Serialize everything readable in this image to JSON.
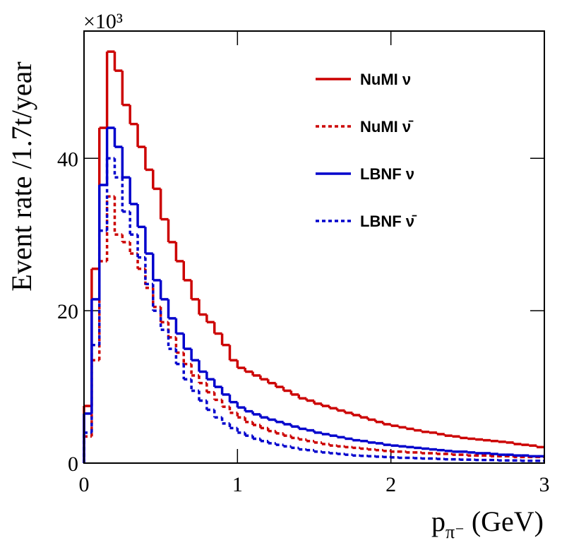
{
  "chart_data": {
    "type": "histogram",
    "ylabel": "Event rate /1.7t/year",
    "y_multiplier": "×10³",
    "xlabel": "p",
    "xlabel_subscript": "π⁻",
    "xlabel_unit": "(GeV)",
    "xlim": [
      0,
      3
    ],
    "ylim": [
      0,
      56.7
    ],
    "xticks": [
      0,
      1,
      2,
      3
    ],
    "yticks": [
      0,
      20,
      40
    ],
    "legend": "upper right",
    "bins": [
      0,
      0.05,
      0.1,
      0.15,
      0.2,
      0.25,
      0.3,
      0.35,
      0.4,
      0.45,
      0.5,
      0.55,
      0.6,
      0.65,
      0.7,
      0.75,
      0.8,
      0.85,
      0.9,
      0.95,
      1.0,
      1.05,
      1.1,
      1.15,
      1.2,
      1.25,
      1.3,
      1.35,
      1.4,
      1.45,
      1.5,
      1.55,
      1.6,
      1.65,
      1.7,
      1.75,
      1.8,
      1.85,
      1.9,
      1.95,
      2.0,
      2.05,
      2.1,
      2.15,
      2.2,
      2.25,
      2.3,
      2.35,
      2.4,
      2.45,
      2.5,
      2.55,
      2.6,
      2.65,
      2.7,
      2.75,
      2.8,
      2.85,
      2.9,
      2.95,
      3.0
    ],
    "series": [
      {
        "name": "NuMI ν",
        "color": "#cc0000",
        "dashed": false,
        "values": [
          7.5,
          25.5,
          44,
          54,
          51.5,
          47,
          44.5,
          41.5,
          38.5,
          36,
          32,
          29,
          26.5,
          24,
          21.5,
          19.5,
          18.5,
          17,
          15.5,
          13.5,
          12.5,
          12,
          11.5,
          11,
          10.5,
          10,
          9.5,
          9,
          8.5,
          8.2,
          7.8,
          7.5,
          7.2,
          6.9,
          6.6,
          6.3,
          6.0,
          5.7,
          5.4,
          5.1,
          4.9,
          4.7,
          4.5,
          4.3,
          4.1,
          4.0,
          3.8,
          3.6,
          3.5,
          3.3,
          3.2,
          3.1,
          3.0,
          2.9,
          2.8,
          2.7,
          2.5,
          2.4,
          2.3,
          2.1
        ]
      },
      {
        "name": "NuMI ν̄",
        "color": "#cc0000",
        "dashed": true,
        "values": [
          3.5,
          13.5,
          26.5,
          35,
          30,
          29,
          27.5,
          25.5,
          23,
          20.5,
          18.5,
          16.5,
          14.5,
          13,
          11.5,
          10.5,
          9.3,
          8.3,
          7.4,
          6.6,
          6.0,
          5.4,
          5.0,
          4.6,
          4.2,
          3.9,
          3.6,
          3.3,
          3.1,
          2.9,
          2.7,
          2.5,
          2.3,
          2.2,
          2.1,
          2.0,
          1.9,
          1.8,
          1.7,
          1.6,
          1.5,
          1.5,
          1.4,
          1.4,
          1.3,
          1.3,
          1.2,
          1.2,
          1.1,
          1.1,
          1.0,
          1.0,
          1.0,
          0.9,
          0.9,
          0.9,
          0.8,
          0.8,
          0.8,
          0.8
        ]
      },
      {
        "name": "LBNF ν",
        "color": "#0000cc",
        "dashed": false,
        "values": [
          6.5,
          21.5,
          36.5,
          44,
          41.5,
          37.5,
          34,
          31,
          27.5,
          24,
          21.5,
          19,
          17,
          15,
          13.5,
          12,
          11,
          10,
          9,
          8,
          7.3,
          6.8,
          6.4,
          6.0,
          5.7,
          5.4,
          5.1,
          4.8,
          4.5,
          4.3,
          4.0,
          3.8,
          3.6,
          3.4,
          3.2,
          3.0,
          2.9,
          2.7,
          2.6,
          2.4,
          2.3,
          2.2,
          2.1,
          2.0,
          1.9,
          1.8,
          1.7,
          1.6,
          1.5,
          1.5,
          1.4,
          1.3,
          1.3,
          1.2,
          1.1,
          1.1,
          1.0,
          1.0,
          0.9,
          0.9
        ]
      },
      {
        "name": "LBNF ν̄",
        "color": "#0000cc",
        "dashed": true,
        "values": [
          4,
          15.5,
          30.5,
          40,
          37.5,
          33,
          30,
          27,
          23.5,
          20,
          17.5,
          15,
          13,
          11,
          9.5,
          8.2,
          7.0,
          6.0,
          5.2,
          4.6,
          4.0,
          3.6,
          3.2,
          2.9,
          2.6,
          2.4,
          2.2,
          2.0,
          1.8,
          1.7,
          1.5,
          1.4,
          1.3,
          1.2,
          1.1,
          1.0,
          0.95,
          0.9,
          0.85,
          0.8,
          0.75,
          0.7,
          0.7,
          0.65,
          0.6,
          0.6,
          0.55,
          0.5,
          0.5,
          0.45,
          0.45,
          0.4,
          0.4,
          0.4,
          0.35,
          0.35,
          0.35,
          0.3,
          0.3,
          0.3
        ]
      }
    ]
  }
}
